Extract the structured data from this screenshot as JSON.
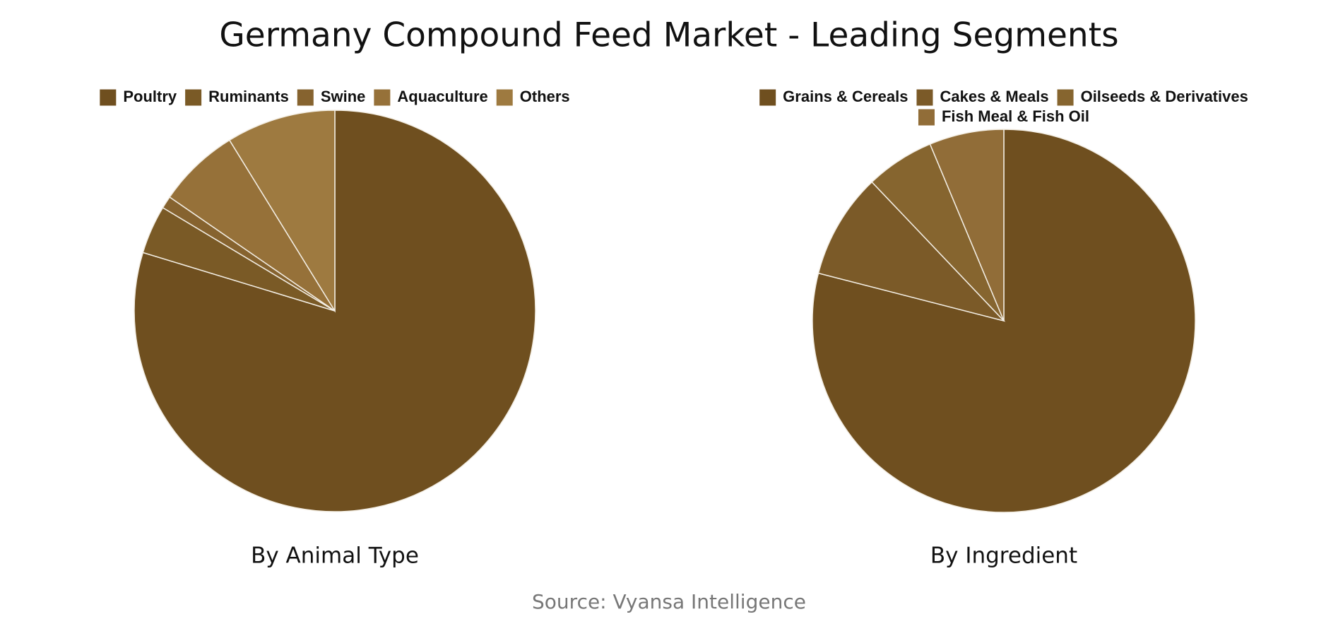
{
  "title": "Germany Compound Feed Market - Leading Segments",
  "source": "Source: Vyansa Intelligence",
  "chart_data": [
    {
      "type": "pie",
      "title": "By Animal Type",
      "categories": [
        "Poultry",
        "Ruminants",
        "Swine",
        "Aquaculture",
        "Others"
      ],
      "values": [
        79.7,
        3.9,
        1.0,
        6.6,
        8.8
      ],
      "colors": [
        "#6f4f1f",
        "#7a5a26",
        "#86632f",
        "#967139",
        "#9e7a40"
      ]
    },
    {
      "type": "pie",
      "title": "By Ingredient",
      "categories": [
        "Grains & Cereals",
        "Cakes & Meals",
        "Oilseeds & Derivatives",
        "Fish Meal & Fish Oil"
      ],
      "values": [
        79.0,
        8.9,
        5.8,
        6.3
      ],
      "colors": [
        "#6f4f1f",
        "#7b5a28",
        "#86652f",
        "#916d38"
      ]
    }
  ]
}
